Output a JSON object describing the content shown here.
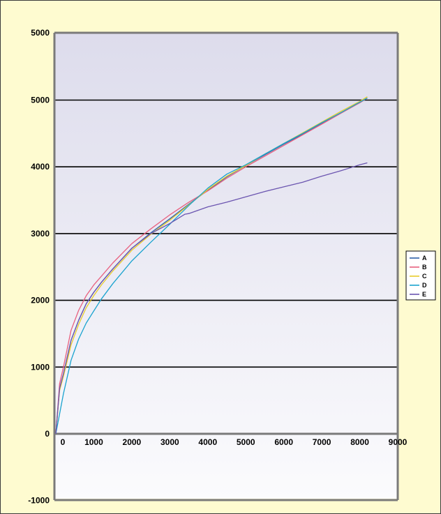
{
  "chart_data": {
    "type": "line",
    "title": "",
    "xlabel": "",
    "ylabel": "",
    "xlim": [
      0,
      9000
    ],
    "ylim": [
      -1000,
      5000
    ],
    "x_ticks": [
      "0",
      "1000",
      "2000",
      "3000",
      "4000",
      "5000",
      "6000",
      "7000",
      "8000",
      "9000"
    ],
    "y_ticks": [
      "-1000",
      "0",
      "1000",
      "2000",
      "3000",
      "4000",
      "5000",
      "5000"
    ],
    "grid": true,
    "legend_position": "right",
    "series": [
      {
        "name": "A",
        "color": "#2d5fa8",
        "points": [
          [
            0,
            0
          ],
          [
            100,
            680
          ],
          [
            200,
            900
          ],
          [
            400,
            1400
          ],
          [
            600,
            1700
          ],
          [
            800,
            1950
          ],
          [
            1000,
            2120
          ],
          [
            1200,
            2270
          ],
          [
            1500,
            2470
          ],
          [
            2000,
            2780
          ],
          [
            2500,
            3010
          ],
          [
            3000,
            3220
          ],
          [
            3500,
            3440
          ],
          [
            4000,
            3650
          ],
          [
            4500,
            3850
          ],
          [
            5000,
            4020
          ],
          [
            5500,
            4180
          ],
          [
            6000,
            4340
          ],
          [
            6500,
            4490
          ],
          [
            7000,
            4650
          ],
          [
            7500,
            4810
          ],
          [
            8000,
            4960
          ],
          [
            8200,
            5030
          ]
        ]
      },
      {
        "name": "B",
        "color": "#e8607f",
        "points": [
          [
            0,
            0
          ],
          [
            100,
            750
          ],
          [
            200,
            1000
          ],
          [
            400,
            1550
          ],
          [
            600,
            1850
          ],
          [
            800,
            2070
          ],
          [
            1000,
            2230
          ],
          [
            1200,
            2360
          ],
          [
            1500,
            2560
          ],
          [
            2000,
            2850
          ],
          [
            2500,
            3070
          ],
          [
            3000,
            3280
          ],
          [
            3500,
            3470
          ],
          [
            4000,
            3640
          ],
          [
            4500,
            3830
          ],
          [
            5000,
            4000
          ],
          [
            5500,
            4160
          ],
          [
            6000,
            4320
          ],
          [
            6500,
            4480
          ],
          [
            7000,
            4640
          ],
          [
            7500,
            4800
          ],
          [
            8000,
            4960
          ],
          [
            8200,
            5030
          ]
        ]
      },
      {
        "name": "C",
        "color": "#e8cc2a",
        "points": [
          [
            0,
            0
          ],
          [
            100,
            650
          ],
          [
            200,
            860
          ],
          [
            400,
            1330
          ],
          [
            600,
            1640
          ],
          [
            800,
            1890
          ],
          [
            1000,
            2070
          ],
          [
            1200,
            2230
          ],
          [
            1500,
            2440
          ],
          [
            2000,
            2750
          ],
          [
            2500,
            2990
          ],
          [
            3000,
            3200
          ],
          [
            3500,
            3430
          ],
          [
            4000,
            3660
          ],
          [
            4500,
            3860
          ],
          [
            5000,
            4020
          ],
          [
            5500,
            4190
          ],
          [
            6000,
            4350
          ],
          [
            6500,
            4510
          ],
          [
            7000,
            4670
          ],
          [
            7500,
            4830
          ],
          [
            8000,
            4980
          ],
          [
            8200,
            5050
          ]
        ]
      },
      {
        "name": "D",
        "color": "#1aa3cf",
        "points": [
          [
            0,
            0
          ],
          [
            200,
            600
          ],
          [
            400,
            1100
          ],
          [
            600,
            1420
          ],
          [
            800,
            1660
          ],
          [
            1000,
            1840
          ],
          [
            1200,
            2020
          ],
          [
            1500,
            2250
          ],
          [
            2000,
            2590
          ],
          [
            2500,
            2870
          ],
          [
            3000,
            3140
          ],
          [
            3500,
            3420
          ],
          [
            4000,
            3680
          ],
          [
            4500,
            3890
          ],
          [
            5000,
            4030
          ],
          [
            5500,
            4190
          ],
          [
            6000,
            4350
          ],
          [
            6500,
            4500
          ],
          [
            7000,
            4660
          ],
          [
            7500,
            4810
          ],
          [
            8000,
            4970
          ],
          [
            8200,
            5030
          ]
        ]
      },
      {
        "name": "E",
        "color": "#6b55b0",
        "points": [
          [
            0,
            0
          ],
          [
            100,
            680
          ],
          [
            200,
            900
          ],
          [
            400,
            1400
          ],
          [
            600,
            1700
          ],
          [
            800,
            1950
          ],
          [
            1000,
            2120
          ],
          [
            1200,
            2270
          ],
          [
            1500,
            2470
          ],
          [
            2000,
            2780
          ],
          [
            2500,
            3000
          ],
          [
            3000,
            3150
          ],
          [
            3400,
            3290
          ],
          [
            3500,
            3300
          ],
          [
            4000,
            3400
          ],
          [
            4500,
            3470
          ],
          [
            5000,
            3550
          ],
          [
            5500,
            3630
          ],
          [
            6000,
            3700
          ],
          [
            6500,
            3770
          ],
          [
            7000,
            3860
          ],
          [
            7500,
            3940
          ],
          [
            8000,
            4030
          ],
          [
            8200,
            4060
          ]
        ]
      }
    ]
  }
}
